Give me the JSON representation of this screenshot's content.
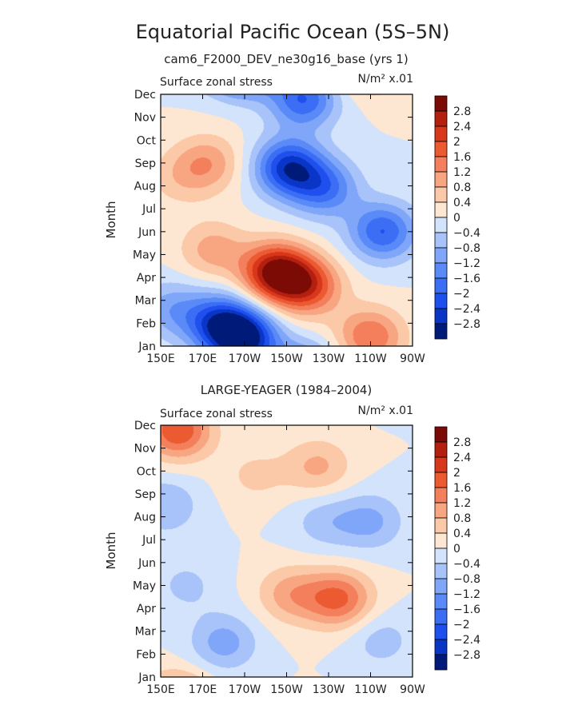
{
  "title": "Equatorial Pacific Ocean (5S–5N)",
  "chart_data": [
    {
      "type": "heatmap",
      "subtitle": "cam6_F2000_DEV_ne30g16_base (yrs 1)",
      "left_label": "Surface zonal stress",
      "right_label": "N/m² x.01",
      "ylabel": "Month",
      "x_ticks": [
        "150E",
        "170E",
        "170W",
        "150W",
        "130W",
        "110W",
        "90W"
      ],
      "y_ticks": [
        "Jan",
        "Feb",
        "Mar",
        "Apr",
        "May",
        "Jun",
        "Jul",
        "Aug",
        "Sep",
        "Oct",
        "Nov",
        "Dec"
      ],
      "colorbar_labels": [
        "2.8",
        "2.4",
        "2",
        "1.6",
        "1.2",
        "0.8",
        "0.4",
        "0",
        "−0.4",
        "−0.8",
        "−1.2",
        "−1.6",
        "−2",
        "−2.4",
        "−2.8"
      ],
      "contour_levels": [
        2.8,
        2.4,
        2,
        1.6,
        1.2,
        0.8,
        0.4,
        0,
        -0.4,
        -0.8,
        -1.2,
        -1.6,
        -2,
        -2.4,
        -2.8
      ],
      "xlim": [
        150,
        270
      ],
      "features": [
        {
          "lon": 205,
          "month": 3.2,
          "value": 3.0
        },
        {
          "lon": 220,
          "month": 2.6,
          "value": 2.0
        },
        {
          "lon": 250,
          "month": 0.4,
          "value": 1.6
        },
        {
          "lon": 211,
          "month": 7.8,
          "value": -2.6
        },
        {
          "lon": 228,
          "month": 6.9,
          "value": -1.7
        },
        {
          "lon": 256,
          "month": 5.0,
          "value": -2.0
        },
        {
          "lon": 190,
          "month": 0.3,
          "value": -2.9
        },
        {
          "lon": 178,
          "month": 1.0,
          "value": -2.2
        },
        {
          "lon": 218,
          "month": 10.8,
          "value": -2.0
        },
        {
          "lon": 175,
          "month": 4.2,
          "value": 1.0
        },
        {
          "lon": 158,
          "month": 7.3,
          "value": 0.5
        },
        {
          "lon": 172,
          "month": 8.0,
          "value": 1.1
        },
        {
          "lon": 155,
          "month": 1.6,
          "value": -1.0
        }
      ]
    },
    {
      "type": "heatmap",
      "subtitle": "LARGE-YEAGER (1984–2004)",
      "left_label": "Surface zonal stress",
      "right_label": "N/m² x.01",
      "ylabel": "Month",
      "x_ticks": [
        "150E",
        "170E",
        "170W",
        "150W",
        "130W",
        "110W",
        "90W"
      ],
      "y_ticks": [
        "Jan",
        "Feb",
        "Mar",
        "Apr",
        "May",
        "Jun",
        "Jul",
        "Aug",
        "Sep",
        "Oct",
        "Nov",
        "Dec"
      ],
      "colorbar_labels": [
        "2.8",
        "2.4",
        "2",
        "1.6",
        "1.2",
        "0.8",
        "0.4",
        "0",
        "−0.4",
        "−0.8",
        "−1.2",
        "−1.6",
        "−2",
        "−2.4",
        "−2.8"
      ],
      "contour_levels": [
        2.8,
        2.4,
        2,
        1.6,
        1.2,
        0.8,
        0.4,
        0,
        -0.4,
        -0.8,
        -1.2,
        -1.6,
        -2,
        -2.4,
        -2.8
      ],
      "xlim": [
        150,
        270
      ],
      "features": [
        {
          "lon": 158,
          "month": 10.8,
          "value": 2.0
        },
        {
          "lon": 235,
          "month": 3.4,
          "value": 1.7
        },
        {
          "lon": 212,
          "month": 3.6,
          "value": 1.0
        },
        {
          "lon": 225,
          "month": 9.2,
          "value": 0.9
        },
        {
          "lon": 195,
          "month": 8.8,
          "value": 0.5
        },
        {
          "lon": 250,
          "month": 6.8,
          "value": -0.9
        },
        {
          "lon": 228,
          "month": 6.8,
          "value": -0.6
        },
        {
          "lon": 180,
          "month": 1.5,
          "value": -1.0
        },
        {
          "lon": 162,
          "month": 4.0,
          "value": -0.5
        },
        {
          "lon": 152,
          "month": 7.5,
          "value": -0.8
        },
        {
          "lon": 255,
          "month": 1.6,
          "value": -0.6
        }
      ]
    }
  ]
}
